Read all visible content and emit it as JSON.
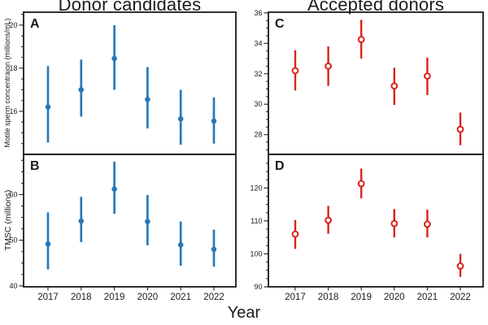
{
  "figure": {
    "titles": [
      "Donor candidates",
      "Accepted donors"
    ],
    "xlabel": "Year",
    "background": "#ffffff",
    "axis_color": "#1a1a1a",
    "colors": {
      "donor_candidates": "#2878b8",
      "accepted_donors": "#d8231d"
    }
  },
  "chart_data": [
    {
      "id": "A",
      "type": "scatter",
      "group": "Donor candidates",
      "ylabel": "Motile sperm concentraion (millions/mL)",
      "marker": "filled-circle",
      "color": "#2878b8",
      "x": [
        2017,
        2018,
        2019,
        2020,
        2021,
        2022
      ],
      "mean": [
        16.2,
        17.0,
        18.45,
        16.55,
        15.65,
        15.55
      ],
      "ci_low": [
        14.55,
        15.75,
        17.0,
        15.2,
        14.45,
        14.5
      ],
      "ci_high": [
        18.1,
        18.4,
        20.0,
        18.05,
        17.0,
        16.65
      ],
      "yticks": [
        16,
        18,
        20
      ],
      "ylim": [
        14.0,
        20.6
      ],
      "grid": false
    },
    {
      "id": "B",
      "type": "scatter",
      "group": "Donor candidates",
      "ylabel": "TMSC (millions)",
      "marker": "filled-circle",
      "color": "#2878b8",
      "x": [
        2017,
        2018,
        2019,
        2020,
        2021,
        2022
      ],
      "mean": [
        49.2,
        54.2,
        61.2,
        54.1,
        49.0,
        48.0
      ],
      "ci_low": [
        43.6,
        49.6,
        55.8,
        48.9,
        44.4,
        44.2
      ],
      "ci_high": [
        56.1,
        59.5,
        67.2,
        59.9,
        54.1,
        52.3
      ],
      "yticks": [
        40,
        50,
        60
      ],
      "ylim": [
        39.8,
        68.8
      ],
      "grid": false
    },
    {
      "id": "C",
      "type": "scatter",
      "group": "Accepted donors",
      "ylabel": "",
      "marker": "open-circle",
      "color": "#d8231d",
      "x": [
        2017,
        2018,
        2019,
        2020,
        2021,
        2022
      ],
      "mean": [
        32.2,
        32.5,
        34.25,
        31.2,
        31.85,
        28.35
      ],
      "ci_low": [
        30.9,
        31.2,
        33.0,
        29.95,
        30.6,
        27.3
      ],
      "ci_high": [
        33.55,
        33.8,
        35.55,
        32.4,
        33.05,
        29.45
      ],
      "yticks": [
        28,
        30,
        32,
        34,
        36
      ],
      "ylim": [
        26.7,
        36.05
      ],
      "grid": false
    },
    {
      "id": "D",
      "type": "scatter",
      "group": "Accepted donors",
      "ylabel": "",
      "marker": "open-circle",
      "color": "#d8231d",
      "x": [
        2017,
        2018,
        2019,
        2020,
        2021,
        2022
      ],
      "mean": [
        106.0,
        110.2,
        121.3,
        109.2,
        109.0,
        96.3
      ],
      "ci_low": [
        101.5,
        106.1,
        116.9,
        105.0,
        105.0,
        93.0
      ],
      "ci_high": [
        110.3,
        114.6,
        125.9,
        113.6,
        113.4,
        100.0
      ],
      "yticks": [
        90,
        100,
        110,
        120
      ],
      "ylim": [
        90.0,
        130.2
      ],
      "grid": false
    }
  ]
}
